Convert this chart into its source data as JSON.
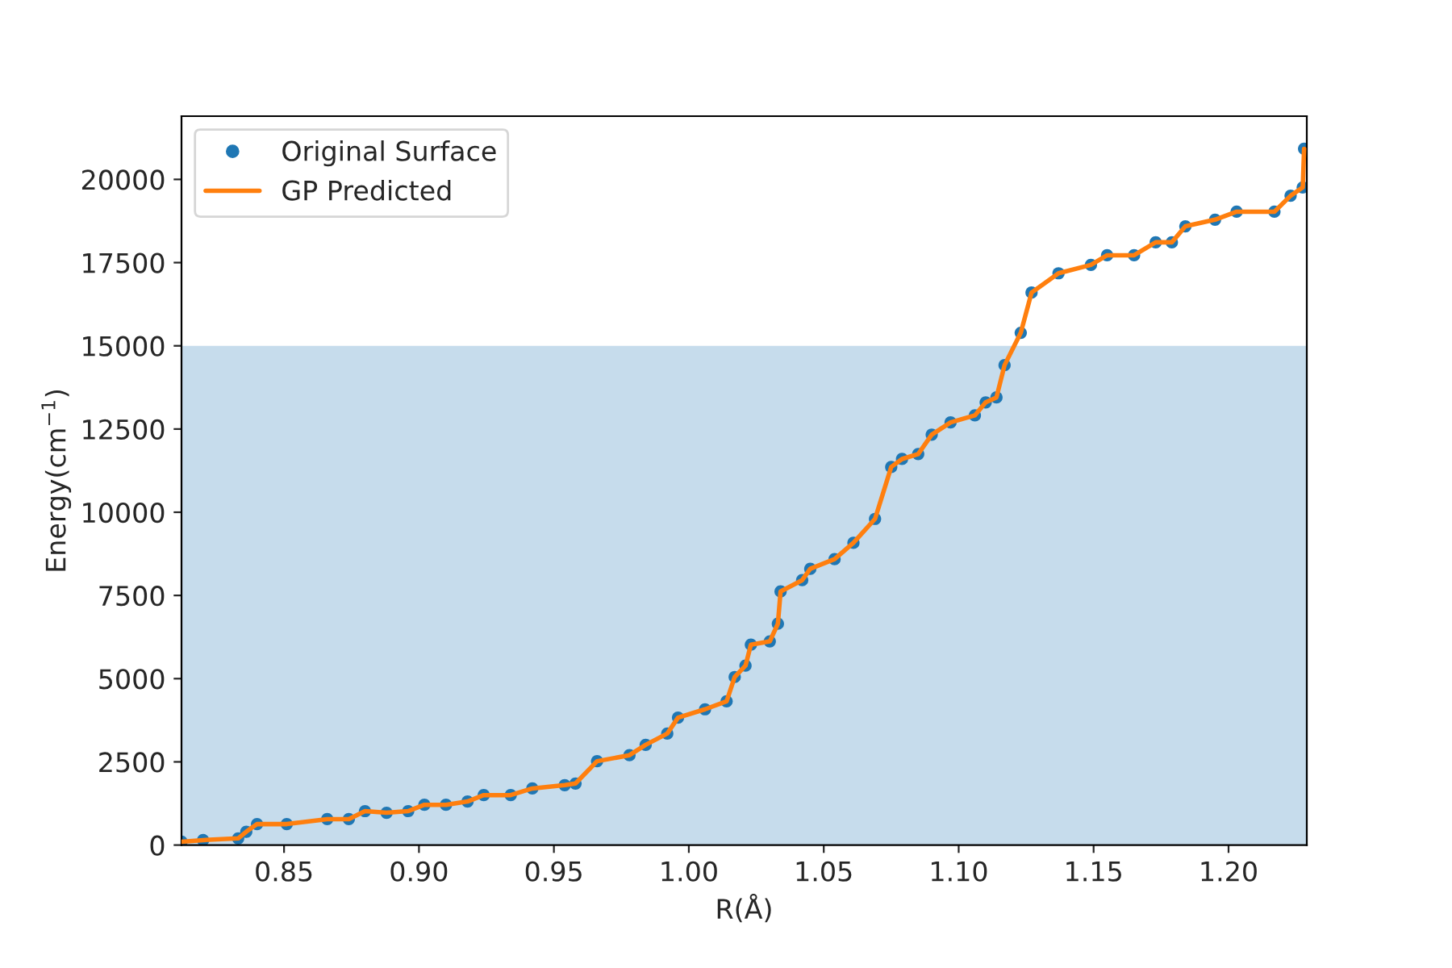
{
  "chart_data": {
    "type": "scatter",
    "xlabel": "R(Å)",
    "ylabel": "Energy(cm$^{−1}$)",
    "xlim": [
      0.812,
      1.229
    ],
    "ylim": [
      0,
      21900
    ],
    "xticks": [
      {
        "value": 0.85,
        "label": "0.85"
      },
      {
        "value": 0.9,
        "label": "0.90"
      },
      {
        "value": 0.95,
        "label": "0.95"
      },
      {
        "value": 1.0,
        "label": "1.00"
      },
      {
        "value": 1.05,
        "label": "1.05"
      },
      {
        "value": 1.1,
        "label": "1.10"
      },
      {
        "value": 1.15,
        "label": "1.15"
      },
      {
        "value": 1.2,
        "label": "1.20"
      }
    ],
    "yticks": [
      0,
      2500,
      5000,
      7500,
      10000,
      12500,
      15000,
      17500,
      20000
    ],
    "bands": [
      {
        "axis": "y",
        "from": 0,
        "to": 15000,
        "color": "#c6dcec"
      }
    ],
    "legend": "top left",
    "grid": false,
    "series": [
      {
        "name": "Original Surface",
        "marker": "circle",
        "color": "#1f77b4",
        "x": [
          0.812,
          0.82,
          0.833,
          0.836,
          0.84,
          0.851,
          0.866,
          0.874,
          0.88,
          0.888,
          0.896,
          0.902,
          0.91,
          0.918,
          0.924,
          0.934,
          0.942,
          0.954,
          0.958,
          0.966,
          0.978,
          0.984,
          0.992,
          0.996,
          1.006,
          1.014,
          1.017,
          1.021,
          1.023,
          1.03,
          1.033,
          1.034,
          1.042,
          1.045,
          1.054,
          1.061,
          1.069,
          1.075,
          1.079,
          1.085,
          1.09,
          1.097,
          1.106,
          1.11,
          1.114,
          1.117,
          1.123,
          1.127,
          1.137,
          1.149,
          1.155,
          1.165,
          1.173,
          1.179,
          1.184,
          1.195,
          1.203,
          1.217,
          1.223,
          1.2275,
          1.228
        ],
        "values": [
          100,
          150,
          200,
          400,
          630,
          630,
          780,
          780,
          1020,
          970,
          1020,
          1210,
          1210,
          1310,
          1500,
          1500,
          1700,
          1800,
          1850,
          2520,
          2700,
          3010,
          3350,
          3830,
          4080,
          4320,
          5050,
          5390,
          6020,
          6120,
          6650,
          7620,
          7960,
          8300,
          8590,
          9080,
          9800,
          11360,
          11600,
          11750,
          12330,
          12700,
          12910,
          13300,
          13450,
          14420,
          15390,
          16600,
          17180,
          17430,
          17720,
          17720,
          18110,
          18110,
          18590,
          18790,
          19030,
          19030,
          19510,
          19760,
          20920
        ]
      },
      {
        "name": "GP Predicted",
        "type": "line",
        "marker": "none",
        "line_style": "solid",
        "color": "#ff7f0e",
        "x": [
          0.812,
          0.82,
          0.833,
          0.836,
          0.84,
          0.851,
          0.866,
          0.874,
          0.88,
          0.888,
          0.896,
          0.902,
          0.91,
          0.918,
          0.924,
          0.934,
          0.942,
          0.954,
          0.958,
          0.966,
          0.978,
          0.984,
          0.992,
          0.996,
          1.006,
          1.014,
          1.017,
          1.021,
          1.023,
          1.03,
          1.033,
          1.034,
          1.042,
          1.045,
          1.054,
          1.061,
          1.069,
          1.075,
          1.079,
          1.085,
          1.09,
          1.097,
          1.106,
          1.11,
          1.114,
          1.117,
          1.123,
          1.127,
          1.137,
          1.149,
          1.155,
          1.165,
          1.173,
          1.179,
          1.184,
          1.195,
          1.203,
          1.217,
          1.223,
          1.2275,
          1.228
        ],
        "values": [
          100,
          150,
          200,
          400,
          630,
          630,
          780,
          780,
          1020,
          970,
          1020,
          1210,
          1210,
          1310,
          1500,
          1500,
          1700,
          1800,
          1850,
          2520,
          2700,
          3010,
          3350,
          3830,
          4080,
          4320,
          5050,
          5390,
          6020,
          6120,
          6650,
          7620,
          7960,
          8300,
          8590,
          9080,
          9800,
          11360,
          11600,
          11750,
          12330,
          12700,
          12910,
          13300,
          13450,
          14420,
          15390,
          16600,
          17180,
          17430,
          17720,
          17720,
          18110,
          18110,
          18590,
          18790,
          19030,
          19030,
          19510,
          19760,
          20920
        ]
      }
    ]
  }
}
